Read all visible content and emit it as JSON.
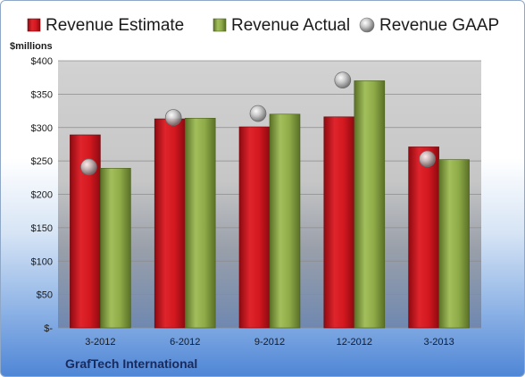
{
  "chart_data": {
    "type": "bar",
    "categories": [
      "3-2012",
      "6-2012",
      "9-2012",
      "12-2012",
      "3-2013"
    ],
    "series": [
      {
        "name": "Revenue Estimate",
        "values": [
          289,
          313,
          301,
          316,
          271
        ],
        "color": "#c8101a"
      },
      {
        "name": "Revenue Actual",
        "values": [
          239,
          314,
          320,
          370,
          252
        ],
        "color": "#7d9b3a"
      },
      {
        "name": "Revenue GAAP",
        "values": [
          241,
          315,
          321,
          371,
          253
        ],
        "color": "#b8b8b8",
        "marker": "circle"
      }
    ],
    "ylabel": "$millions",
    "ylim": [
      0,
      400
    ],
    "yticks": [
      0,
      50,
      100,
      150,
      200,
      250,
      300,
      350,
      400
    ],
    "ytick_labels": [
      "$-",
      "$50",
      "$100",
      "$150",
      "$200",
      "$250",
      "$300",
      "$350",
      "$400"
    ],
    "grid": true,
    "legend": "top"
  },
  "footer": {
    "company": "GrafTech International"
  }
}
